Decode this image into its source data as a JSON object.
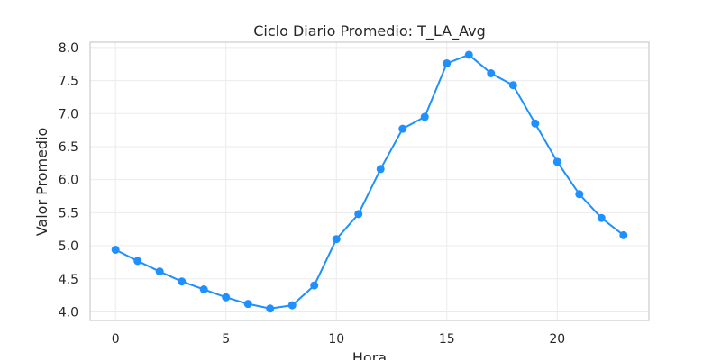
{
  "chart_data": {
    "type": "line",
    "title": "Ciclo Diario Promedio: T_LA_Avg",
    "xlabel": "Hora",
    "ylabel": "Valor Promedio",
    "xlim": [
      -1.15,
      24.15
    ],
    "ylim": [
      3.87,
      8.08
    ],
    "x_ticks": [
      0,
      5,
      10,
      15,
      20
    ],
    "y_ticks": [
      4.0,
      4.5,
      5.0,
      5.5,
      6.0,
      6.5,
      7.0,
      7.5,
      8.0
    ],
    "grid": true,
    "color": "#1e90ff",
    "series": [
      {
        "x": [
          0,
          1,
          2,
          3,
          4,
          5,
          6,
          7,
          8,
          9,
          10,
          11,
          12,
          13,
          14,
          15,
          16,
          17,
          18,
          19,
          20,
          21,
          22,
          23
        ],
        "values": [
          4.94,
          4.77,
          4.61,
          4.46,
          4.34,
          4.22,
          4.12,
          4.05,
          4.1,
          4.4,
          5.1,
          5.48,
          6.16,
          6.77,
          6.95,
          7.76,
          7.89,
          7.61,
          7.43,
          6.85,
          6.27,
          5.78,
          5.42,
          5.16
        ]
      }
    ]
  }
}
